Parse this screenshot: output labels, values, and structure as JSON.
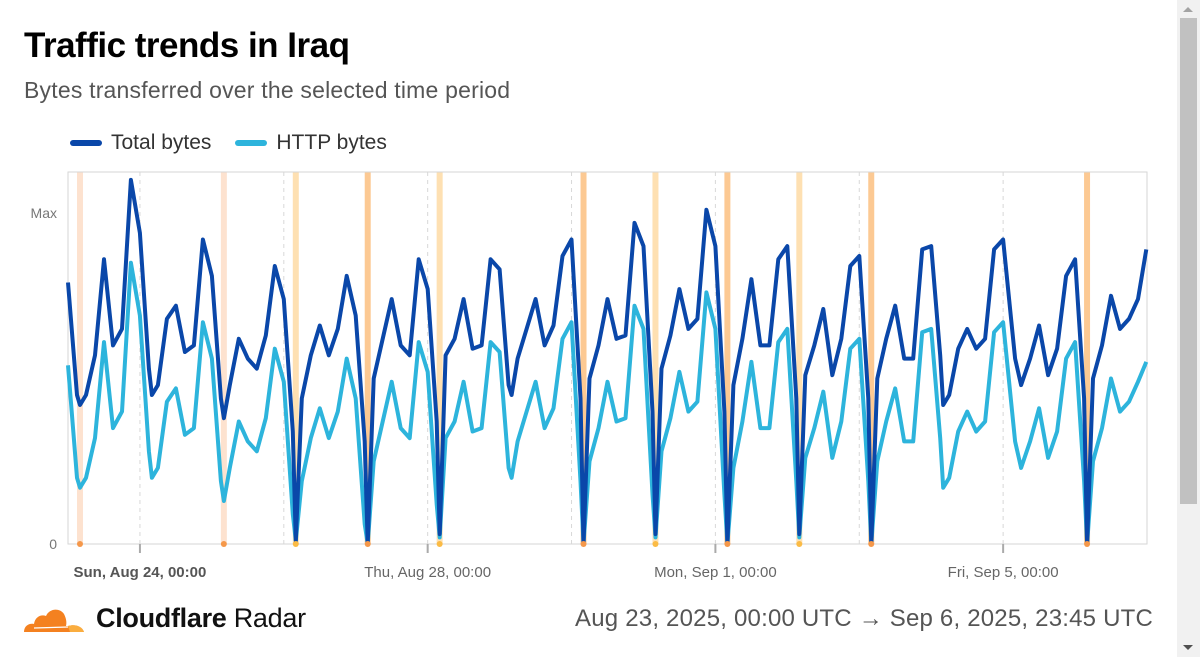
{
  "header": {
    "title": "Traffic trends in Iraq",
    "subtitle": "Bytes transferred over the selected time period"
  },
  "footer": {
    "brand_bold": "Cloudflare",
    "brand_light": "Radar",
    "date_range": "Aug 23, 2025, 00:00 UTC → Sep 6, 2025, 23:45 UTC",
    "logo_color": "#f48120"
  },
  "chart_data": {
    "type": "line",
    "title": "Traffic trends in Iraq",
    "subtitle": "Bytes transferred over the selected time period",
    "x_range": [
      "2025-08-23T00:00Z",
      "2025-09-06T23:45Z"
    ],
    "y_ticks": [
      {
        "value": 0,
        "label": "0"
      },
      {
        "value": 1,
        "label": "Max"
      }
    ],
    "x_ticks": [
      {
        "date": "2025-08-24",
        "label": "Sun, Aug 24, 00:00",
        "bold": true
      },
      {
        "date": "2025-08-28",
        "label": "Thu, Aug 28, 00:00",
        "bold": false
      },
      {
        "date": "2025-09-01",
        "label": "Mon, Sep 1, 00:00",
        "bold": false
      },
      {
        "date": "2025-09-05",
        "label": "Fri, Sep 5, 00:00",
        "bold": false
      }
    ],
    "grid_dates": [
      "2025-08-24",
      "2025-08-26",
      "2025-08-28",
      "2025-08-30",
      "2025-09-01",
      "2025-09-03",
      "2025-09-05"
    ],
    "legend_position": "top-left",
    "series": [
      {
        "name": "Total bytes",
        "key": "total",
        "color": "#0a47a9"
      },
      {
        "name": "HTTP bytes",
        "key": "http",
        "color": "#2db4dc"
      }
    ],
    "hours_utc": [
      0,
      3,
      4,
      6,
      9,
      12,
      15,
      18,
      21,
      23.75
    ],
    "days": [
      {
        "date": "2025-08-23",
        "total": [
          0.79,
          0.45,
          0.42,
          0.45,
          0.57,
          0.86,
          0.6,
          0.65,
          1.1
        ],
        "http": [
          0.54,
          0.2,
          0.17,
          0.2,
          0.32,
          0.61,
          0.35,
          0.4,
          0.85
        ]
      },
      {
        "date": "2025-08-24",
        "total": [
          0.94,
          0.53,
          0.45,
          0.48,
          0.68,
          0.72,
          0.58,
          0.6,
          0.92
        ],
        "http": [
          0.69,
          0.28,
          0.2,
          0.23,
          0.43,
          0.47,
          0.33,
          0.35,
          0.67
        ]
      },
      {
        "date": "2025-08-25",
        "total": [
          0.81,
          0.44,
          0.38,
          0.48,
          0.62,
          0.56,
          0.53,
          0.63,
          0.84
        ],
        "http": [
          0.56,
          0.19,
          0.13,
          0.23,
          0.37,
          0.31,
          0.28,
          0.38,
          0.59
        ]
      },
      {
        "date": "2025-08-26",
        "total": [
          0.74,
          0.34,
          0.01,
          0.44,
          0.57,
          0.66,
          0.57,
          0.65,
          0.81
        ],
        "http": [
          0.49,
          0.09,
          0.01,
          0.19,
          0.32,
          0.41,
          0.32,
          0.4,
          0.56
        ]
      },
      {
        "date": "2025-08-27",
        "total": [
          0.69,
          0.31,
          0.0,
          0.5,
          0.62,
          0.74,
          0.6,
          0.57,
          0.86
        ],
        "http": [
          0.44,
          0.06,
          0.0,
          0.25,
          0.37,
          0.49,
          0.35,
          0.32,
          0.61
        ]
      },
      {
        "date": "2025-08-28",
        "total": [
          0.77,
          0.37,
          0.03,
          0.57,
          0.62,
          0.74,
          0.59,
          0.6,
          0.86
        ],
        "http": [
          0.52,
          0.12,
          0.02,
          0.32,
          0.37,
          0.49,
          0.34,
          0.35,
          0.61
        ]
      },
      {
        "date": "2025-08-29",
        "total": [
          0.83,
          0.48,
          0.45,
          0.56,
          0.65,
          0.74,
          0.6,
          0.66,
          0.87
        ],
        "http": [
          0.58,
          0.23,
          0.2,
          0.31,
          0.4,
          0.49,
          0.35,
          0.41,
          0.62
        ]
      },
      {
        "date": "2025-08-30",
        "total": [
          0.92,
          0.44,
          0.0,
          0.5,
          0.6,
          0.74,
          0.62,
          0.63,
          0.97
        ],
        "http": [
          0.67,
          0.19,
          0.0,
          0.25,
          0.35,
          0.49,
          0.37,
          0.38,
          0.72
        ]
      },
      {
        "date": "2025-08-31",
        "total": [
          0.9,
          0.4,
          0.03,
          0.53,
          0.63,
          0.77,
          0.65,
          0.68,
          1.01
        ],
        "http": [
          0.65,
          0.15,
          0.02,
          0.28,
          0.38,
          0.52,
          0.4,
          0.43,
          0.76
        ]
      },
      {
        "date": "2025-09-01",
        "total": [
          0.9,
          0.4,
          0.0,
          0.48,
          0.62,
          0.8,
          0.6,
          0.6,
          0.86
        ],
        "http": [
          0.65,
          0.15,
          0.0,
          0.23,
          0.37,
          0.55,
          0.35,
          0.35,
          0.61
        ]
      },
      {
        "date": "2025-09-02",
        "total": [
          0.9,
          0.44,
          0.03,
          0.51,
          0.6,
          0.71,
          0.51,
          0.62,
          0.84
        ],
        "http": [
          0.65,
          0.19,
          0.02,
          0.26,
          0.35,
          0.46,
          0.26,
          0.37,
          0.59
        ]
      },
      {
        "date": "2025-09-03",
        "total": [
          0.87,
          0.44,
          0.0,
          0.5,
          0.62,
          0.72,
          0.56,
          0.56,
          0.89
        ],
        "http": [
          0.62,
          0.19,
          0.0,
          0.25,
          0.37,
          0.47,
          0.31,
          0.31,
          0.64
        ]
      },
      {
        "date": "2025-09-04",
        "total": [
          0.9,
          0.57,
          0.42,
          0.45,
          0.59,
          0.65,
          0.59,
          0.62,
          0.89
        ],
        "http": [
          0.65,
          0.32,
          0.17,
          0.2,
          0.34,
          0.4,
          0.34,
          0.37,
          0.64
        ]
      },
      {
        "date": "2025-09-05",
        "total": [
          0.92,
          0.65,
          0.56,
          0.48,
          0.56,
          0.66,
          0.51,
          0.59,
          0.81
        ],
        "http": [
          0.67,
          0.4,
          0.31,
          0.23,
          0.31,
          0.41,
          0.26,
          0.34,
          0.56
        ]
      },
      {
        "date": "2025-09-06",
        "total": [
          0.86,
          0.44,
          0.0,
          0.5,
          0.6,
          0.75,
          0.65,
          0.68,
          0.74,
          0.89
        ],
        "http": [
          0.61,
          0.19,
          0.0,
          0.25,
          0.35,
          0.5,
          0.4,
          0.43,
          0.49,
          0.55
        ]
      }
    ],
    "annotations": [
      {
        "date": "2025-08-23",
        "band": "#fde2cf",
        "dot": "#f5984a"
      },
      {
        "date": "2025-08-25",
        "band": "#fde2cf",
        "dot": "#f5984a"
      },
      {
        "date": "2025-08-26",
        "band": "#fee0b2",
        "dot": "#fbbb45"
      },
      {
        "date": "2025-08-27",
        "band": "#fcc993",
        "dot": null
      },
      {
        "date": "2025-08-28",
        "band": "#fee0b2",
        "dot": "#fbbb45"
      },
      {
        "date": "2025-08-30",
        "band": "#fcc993",
        "dot": null
      },
      {
        "date": "2025-08-31",
        "band": "#fee0b2",
        "dot": "#fbbb45"
      },
      {
        "date": "2025-09-01",
        "band": "#fcc993",
        "dot": null
      },
      {
        "date": "2025-09-02",
        "band": "#fee0b2",
        "dot": "#fbbb45"
      },
      {
        "date": "2025-09-03",
        "band": "#fcc993",
        "dot": null
      },
      {
        "date": "2025-09-06",
        "band": "#fcc993",
        "dot": null
      }
    ]
  }
}
